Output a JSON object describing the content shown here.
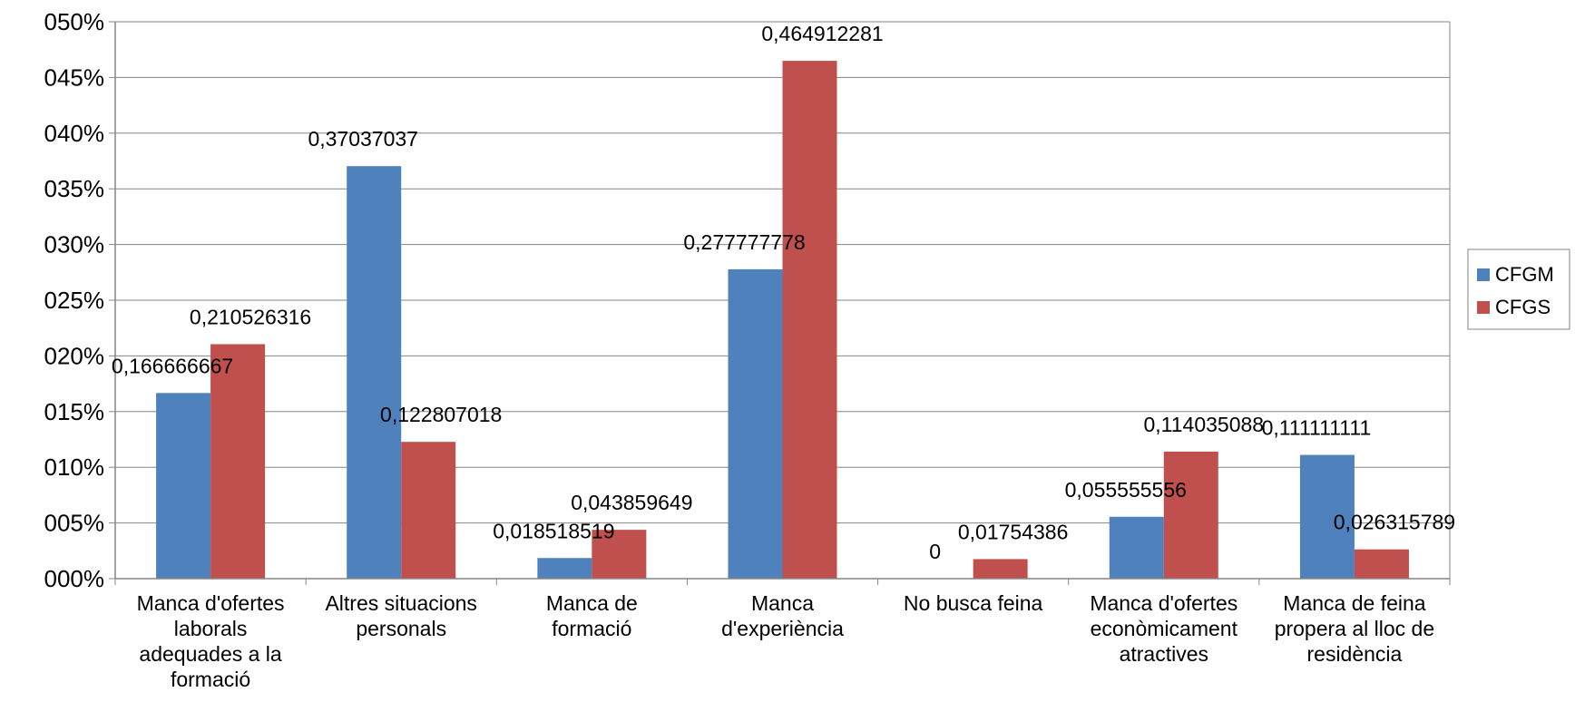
{
  "chart_data": {
    "type": "bar",
    "categories": [
      [
        "Manca d'ofertes",
        "laborals",
        "adequades a la",
        "formació"
      ],
      [
        "Altres situacions",
        "personals"
      ],
      [
        "Manca de",
        "formació"
      ],
      [
        "Manca",
        "d'experiència"
      ],
      [
        "No busca feina"
      ],
      [
        "Manca d'ofertes",
        "econòmicament",
        "atractives"
      ],
      [
        "Manca de feina",
        "propera al lloc de",
        "residència"
      ]
    ],
    "series": [
      {
        "name": "CFGM",
        "color": "#4F81BD",
        "values": [
          0.166666667,
          0.37037037,
          0.018518519,
          0.277777778,
          0,
          0.055555556,
          0.111111111
        ],
        "labels": [
          "0,166666667",
          "0,37037037",
          "0,018518519",
          "0,277777778",
          "0",
          "0,055555556",
          "0,111111111"
        ]
      },
      {
        "name": "CFGS",
        "color": "#C0504D",
        "values": [
          0.210526316,
          0.122807018,
          0.043859649,
          0.464912281,
          0.01754386,
          0.114035088,
          0.026315789
        ],
        "labels": [
          "0,210526316",
          "0,122807018",
          "0,043859649",
          "0,464912281",
          "0,01754386",
          "0,114035088",
          "0,026315789"
        ]
      }
    ],
    "yticks": [
      "000%",
      "005%",
      "010%",
      "015%",
      "020%",
      "025%",
      "030%",
      "035%",
      "040%",
      "045%",
      "050%"
    ],
    "ylim": [
      0,
      0.5
    ],
    "grid": true,
    "legend": "right",
    "title": "",
    "xlabel": "",
    "ylabel": ""
  }
}
